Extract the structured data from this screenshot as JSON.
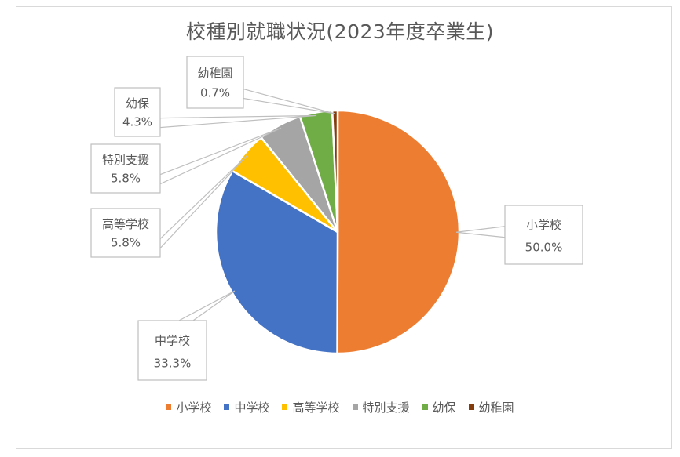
{
  "chart_data": {
    "type": "pie",
    "title": "校種別就職状況(2023年度卒業生)",
    "categories": [
      "小学校",
      "中学校",
      "高等学校",
      "特別支援",
      "幼保",
      "幼稚園"
    ],
    "values": [
      50.0,
      33.3,
      5.8,
      5.8,
      4.3,
      0.7
    ],
    "data_labels": [
      "50.0%",
      "33.3%",
      "5.8%",
      "5.8%",
      "4.3%",
      "0.7%"
    ],
    "colors": [
      "#ED7D31",
      "#4472C4",
      "#FFC000",
      "#A5A5A5",
      "#70AD47",
      "#843C0C"
    ],
    "legend_position": "bottom"
  }
}
